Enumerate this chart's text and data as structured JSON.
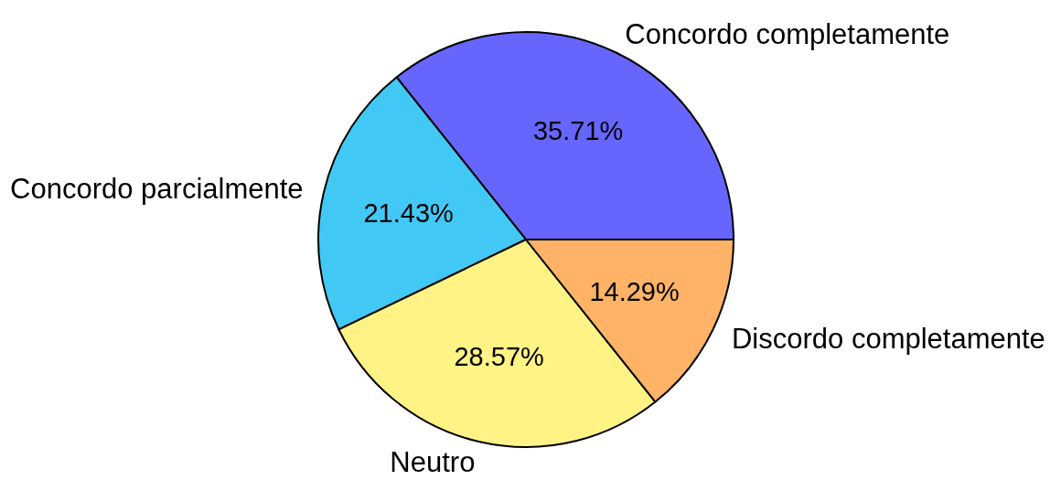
{
  "chart_data": {
    "type": "pie",
    "categories": [
      "Concordo completamente",
      "Concordo parcialmente",
      "Neutro",
      "Discordo completamente"
    ],
    "values": [
      35.71,
      21.43,
      28.57,
      14.29
    ],
    "colors": [
      "#6666ff",
      "#42c8f4",
      "#fff385",
      "#ffb366"
    ],
    "value_labels": [
      "35.71%",
      "21.43%",
      "28.57%",
      "14.29%"
    ]
  }
}
